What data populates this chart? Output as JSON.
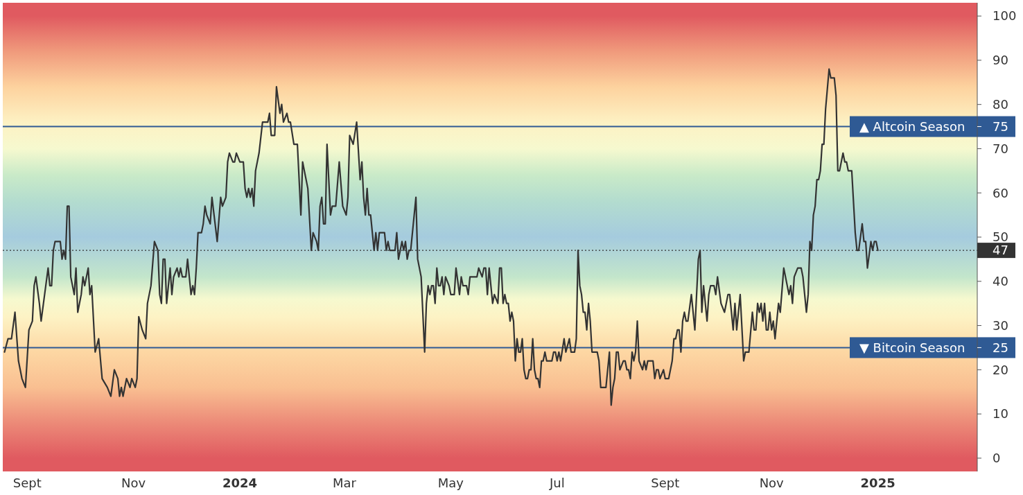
{
  "chart_data": {
    "type": "line",
    "xlim": [
      "2023-08-18",
      "2025-02-27"
    ],
    "ylim": [
      -3,
      103
    ],
    "xticks": [
      {
        "value": "2023-09-01",
        "label": "Sept"
      },
      {
        "value": "2023-11-01",
        "label": "Nov"
      },
      {
        "value": "2024-01-01",
        "label": "2024"
      },
      {
        "value": "2024-03-01",
        "label": "Mar"
      },
      {
        "value": "2024-05-01",
        "label": "May"
      },
      {
        "value": "2024-07-01",
        "label": "Jul"
      },
      {
        "value": "2024-09-01",
        "label": "Sept"
      },
      {
        "value": "2024-11-01",
        "label": "Nov"
      },
      {
        "value": "2025-01-01",
        "label": "2025"
      }
    ],
    "yticks": [
      0,
      10,
      20,
      25,
      30,
      40,
      50,
      60,
      70,
      75,
      80,
      90,
      100
    ],
    "grid": false,
    "marker": "none",
    "line_style": "solid",
    "ref_lines": [
      {
        "axis": "y",
        "value": 75,
        "label": "▲ Altcoin Season",
        "color": "#2f5a94",
        "line_style": "solid"
      },
      {
        "axis": "y",
        "value": 25,
        "label": "▼ Bitcoin Season",
        "color": "#2f5a94",
        "line_style": "solid"
      },
      {
        "axis": "y",
        "value": 47,
        "label": "47",
        "color": "#333333",
        "line_style": "dotted"
      }
    ],
    "series": [
      {
        "color": "#333333",
        "x": [
          "2023-08-19",
          "2023-08-21",
          "2023-08-23",
          "2023-08-25",
          "2023-08-27",
          "2023-08-29",
          "2023-08-31",
          "2023-09-02",
          "2023-09-04",
          "2023-09-05",
          "2023-09-06",
          "2023-09-08",
          "2023-09-09",
          "2023-09-11",
          "2023-09-13",
          "2023-09-14",
          "2023-09-15",
          "2023-09-16",
          "2023-09-17",
          "2023-09-20",
          "2023-09-21",
          "2023-09-22",
          "2023-09-23",
          "2023-09-24",
          "2023-09-25",
          "2023-09-26",
          "2023-09-28",
          "2023-09-29",
          "2023-09-30",
          "2023-10-02",
          "2023-10-03",
          "2023-10-04",
          "2023-10-06",
          "2023-10-07",
          "2023-10-08",
          "2023-10-10",
          "2023-10-12",
          "2023-10-14",
          "2023-10-17",
          "2023-10-19",
          "2023-10-21",
          "2023-10-23",
          "2023-10-24",
          "2023-10-25",
          "2023-10-26",
          "2023-10-28",
          "2023-10-30",
          "2023-10-31",
          "2023-11-02",
          "2023-11-03",
          "2023-11-04",
          "2023-11-06",
          "2023-11-08",
          "2023-11-09",
          "2023-11-11",
          "2023-11-13",
          "2023-11-15",
          "2023-11-16",
          "2023-11-17",
          "2023-11-18",
          "2023-11-19",
          "2023-11-20",
          "2023-11-22",
          "2023-11-23",
          "2023-11-24",
          "2023-11-26",
          "2023-11-27",
          "2023-11-28",
          "2023-11-29",
          "2023-12-01",
          "2023-12-02",
          "2023-12-04",
          "2023-12-05",
          "2023-12-06",
          "2023-12-07",
          "2023-12-08",
          "2023-12-10",
          "2023-12-11",
          "2023-12-12",
          "2023-12-13",
          "2023-12-15",
          "2023-12-16",
          "2023-12-19",
          "2023-12-21",
          "2023-12-22",
          "2023-12-24",
          "2023-12-25",
          "2023-12-26",
          "2023-12-28",
          "2023-12-29",
          "2023-12-30",
          "2024-01-01",
          "2024-01-03",
          "2024-01-04",
          "2024-01-05",
          "2024-01-06",
          "2024-01-07",
          "2024-01-08",
          "2024-01-09",
          "2024-01-10",
          "2024-01-12",
          "2024-01-14",
          "2024-01-17",
          "2024-01-18",
          "2024-01-19",
          "2024-01-21",
          "2024-01-22",
          "2024-01-24",
          "2024-01-25",
          "2024-01-26",
          "2024-01-28",
          "2024-01-29",
          "2024-01-30",
          "2024-02-01",
          "2024-02-03",
          "2024-02-05",
          "2024-02-06",
          "2024-02-07",
          "2024-02-09",
          "2024-02-11",
          "2024-02-12",
          "2024-02-14",
          "2024-02-15",
          "2024-02-16",
          "2024-02-17",
          "2024-02-18",
          "2024-02-19",
          "2024-02-20",
          "2024-02-22",
          "2024-02-23",
          "2024-02-25",
          "2024-02-27",
          "2024-02-29",
          "2024-03-02",
          "2024-03-03",
          "2024-03-04",
          "2024-03-06",
          "2024-03-08",
          "2024-03-10",
          "2024-03-11",
          "2024-03-12",
          "2024-03-13",
          "2024-03-14",
          "2024-03-15",
          "2024-03-16",
          "2024-03-18",
          "2024-03-19",
          "2024-03-20",
          "2024-03-21",
          "2024-03-24",
          "2024-03-25",
          "2024-03-26",
          "2024-03-27",
          "2024-03-30",
          "2024-03-31",
          "2024-04-01",
          "2024-04-03",
          "2024-04-04",
          "2024-04-05",
          "2024-04-06",
          "2024-04-07",
          "2024-04-08",
          "2024-04-11",
          "2024-04-12",
          "2024-04-14",
          "2024-04-16",
          "2024-04-17",
          "2024-04-18",
          "2024-04-19",
          "2024-04-20",
          "2024-04-21",
          "2024-04-22",
          "2024-04-23",
          "2024-04-24",
          "2024-04-25",
          "2024-04-26",
          "2024-04-27",
          "2024-04-28",
          "2024-04-30",
          "2024-05-01",
          "2024-05-03",
          "2024-05-04",
          "2024-05-06",
          "2024-05-07",
          "2024-05-08",
          "2024-05-10",
          "2024-05-11",
          "2024-05-12",
          "2024-05-16",
          "2024-05-17",
          "2024-05-19",
          "2024-05-20",
          "2024-05-21",
          "2024-05-22",
          "2024-05-23",
          "2024-05-25",
          "2024-05-26",
          "2024-05-28",
          "2024-05-29",
          "2024-05-30",
          "2024-05-31",
          "2024-06-01",
          "2024-06-02",
          "2024-06-03",
          "2024-06-04",
          "2024-06-05",
          "2024-06-06",
          "2024-06-07",
          "2024-06-08",
          "2024-06-09",
          "2024-06-10",
          "2024-06-11",
          "2024-06-12",
          "2024-06-13",
          "2024-06-14",
          "2024-06-15",
          "2024-06-16",
          "2024-06-17",
          "2024-06-18",
          "2024-06-19",
          "2024-06-20",
          "2024-06-21",
          "2024-06-22",
          "2024-06-23",
          "2024-06-24",
          "2024-06-25",
          "2024-06-28",
          "2024-06-29",
          "2024-06-30",
          "2024-07-01",
          "2024-07-02",
          "2024-07-03",
          "2024-07-05",
          "2024-07-06",
          "2024-07-08",
          "2024-07-09",
          "2024-07-11",
          "2024-07-12",
          "2024-07-13",
          "2024-07-14",
          "2024-07-15",
          "2024-07-16",
          "2024-07-17",
          "2024-07-18",
          "2024-07-19",
          "2024-07-20",
          "2024-07-21",
          "2024-07-24",
          "2024-07-25",
          "2024-07-26",
          "2024-07-29",
          "2024-07-31",
          "2024-08-01",
          "2024-08-02",
          "2024-08-03",
          "2024-08-04",
          "2024-08-05",
          "2024-08-06",
          "2024-08-08",
          "2024-08-09",
          "2024-08-10",
          "2024-08-11",
          "2024-08-12",
          "2024-08-13",
          "2024-08-14",
          "2024-08-15",
          "2024-08-16",
          "2024-08-17",
          "2024-08-19",
          "2024-08-20",
          "2024-08-21",
          "2024-08-22",
          "2024-08-25",
          "2024-08-26",
          "2024-08-27",
          "2024-08-28",
          "2024-08-29",
          "2024-08-31",
          "2024-09-01",
          "2024-09-03",
          "2024-09-05",
          "2024-09-06",
          "2024-09-07",
          "2024-09-08",
          "2024-09-09",
          "2024-09-10",
          "2024-09-11",
          "2024-09-12",
          "2024-09-13",
          "2024-09-14",
          "2024-09-16",
          "2024-09-18",
          "2024-09-20",
          "2024-09-21",
          "2024-09-22",
          "2024-09-23",
          "2024-09-25",
          "2024-09-26",
          "2024-09-27",
          "2024-09-29",
          "2024-09-30",
          "2024-10-01",
          "2024-10-03",
          "2024-10-05",
          "2024-10-07",
          "2024-10-08",
          "2024-10-10",
          "2024-10-11",
          "2024-10-12",
          "2024-10-14",
          "2024-10-16",
          "2024-10-17",
          "2024-10-19",
          "2024-10-21",
          "2024-10-22",
          "2024-10-23",
          "2024-10-24",
          "2024-10-25",
          "2024-10-26",
          "2024-10-27",
          "2024-10-28",
          "2024-10-29",
          "2024-10-30",
          "2024-10-31",
          "2024-11-01",
          "2024-11-02",
          "2024-11-03",
          "2024-11-05",
          "2024-11-06",
          "2024-11-08",
          "2024-11-09",
          "2024-11-11",
          "2024-11-12",
          "2024-11-13",
          "2024-11-14",
          "2024-11-16",
          "2024-11-18",
          "2024-11-19",
          "2024-11-21",
          "2024-11-22",
          "2024-11-23",
          "2024-11-24",
          "2024-11-25",
          "2024-11-26",
          "2024-11-27",
          "2024-11-28",
          "2024-11-29",
          "2024-11-30",
          "2024-12-01",
          "2024-12-02",
          "2024-12-04",
          "2024-12-05",
          "2024-12-07",
          "2024-12-08",
          "2024-12-09",
          "2024-12-10",
          "2024-12-12",
          "2024-12-13",
          "2024-12-14",
          "2024-12-15",
          "2024-12-17",
          "2024-12-19",
          "2024-12-20",
          "2024-12-21",
          "2024-12-23",
          "2024-12-24",
          "2024-12-25",
          "2024-12-26",
          "2024-12-28",
          "2024-12-29",
          "2024-12-30",
          "2024-12-31",
          "2025-01-01"
        ],
        "values": [
          24,
          27,
          27,
          33,
          22,
          18,
          16,
          29,
          31,
          39,
          41,
          35,
          31,
          37,
          43,
          39,
          39,
          47,
          49,
          49,
          45,
          47,
          45,
          57,
          57,
          41,
          37,
          43,
          33,
          37,
          41,
          39,
          43,
          37,
          39,
          24,
          27,
          18,
          16,
          14,
          20,
          18,
          14,
          16,
          14,
          18,
          16,
          18,
          16,
          18,
          32,
          29,
          27,
          35,
          39,
          49,
          47,
          37,
          35,
          45,
          45,
          35,
          43,
          37,
          41,
          43,
          41,
          43,
          41,
          41,
          45,
          37,
          39,
          37,
          43,
          51,
          51,
          53,
          57,
          55,
          53,
          59,
          49,
          59,
          57,
          59,
          67,
          69,
          67,
          67,
          69,
          67,
          67,
          61,
          59,
          61,
          59,
          61,
          57,
          65,
          69,
          76,
          76,
          78,
          73,
          73,
          84,
          78,
          80,
          76,
          78,
          76,
          76,
          71,
          71,
          55,
          67,
          65,
          61,
          47,
          51,
          49,
          47,
          57,
          59,
          53,
          53,
          71,
          55,
          57,
          57,
          67,
          57,
          55,
          59,
          73,
          71,
          76,
          63,
          67,
          59,
          55,
          61,
          55,
          55,
          47,
          51,
          47,
          51,
          51,
          47,
          49,
          47,
          47,
          51,
          45,
          49,
          47,
          49,
          45,
          47,
          47,
          59,
          45,
          41,
          24,
          35,
          39,
          37,
          39,
          39,
          35,
          43,
          39,
          39,
          41,
          37,
          41,
          39,
          37,
          37,
          43,
          37,
          41,
          39,
          39,
          37,
          41,
          41,
          43,
          41,
          43,
          43,
          37,
          43,
          35,
          37,
          35,
          43,
          43,
          35,
          37,
          35,
          35,
          31,
          33,
          31,
          22,
          27,
          24,
          24,
          27,
          20,
          18,
          18,
          20,
          20,
          27,
          20,
          18,
          18,
          16,
          22,
          22,
          24,
          22,
          22,
          24,
          24,
          22,
          24,
          22,
          27,
          24,
          27,
          24,
          24,
          27,
          47,
          39,
          37,
          33,
          33,
          29,
          35,
          31,
          24,
          24,
          22,
          16,
          16,
          24,
          12,
          16,
          18,
          24,
          24,
          20,
          22,
          22,
          20,
          20,
          18,
          24,
          22,
          24,
          31,
          22,
          20,
          22,
          20,
          22,
          22,
          18,
          20,
          20,
          18,
          20,
          18,
          18,
          22,
          27,
          27,
          29,
          29,
          24,
          31,
          33,
          31,
          31,
          37,
          29,
          45,
          47,
          33,
          39,
          31,
          37,
          39,
          39,
          37,
          41,
          35,
          33,
          37,
          37,
          29,
          35,
          29,
          37,
          22,
          24,
          24,
          33,
          29,
          29,
          35,
          33,
          35,
          31,
          35,
          29,
          29,
          33,
          29,
          31,
          27,
          35,
          33,
          43,
          41,
          37,
          39,
          35,
          41,
          43,
          43,
          41,
          33,
          37,
          49,
          47,
          55,
          57,
          63,
          63,
          65,
          71,
          71,
          79,
          88,
          86,
          86,
          82,
          65,
          65,
          69,
          67,
          67,
          65,
          65,
          51,
          47,
          47,
          53,
          49,
          49,
          43,
          49,
          47,
          49,
          49,
          47
        ]
      }
    ]
  }
}
